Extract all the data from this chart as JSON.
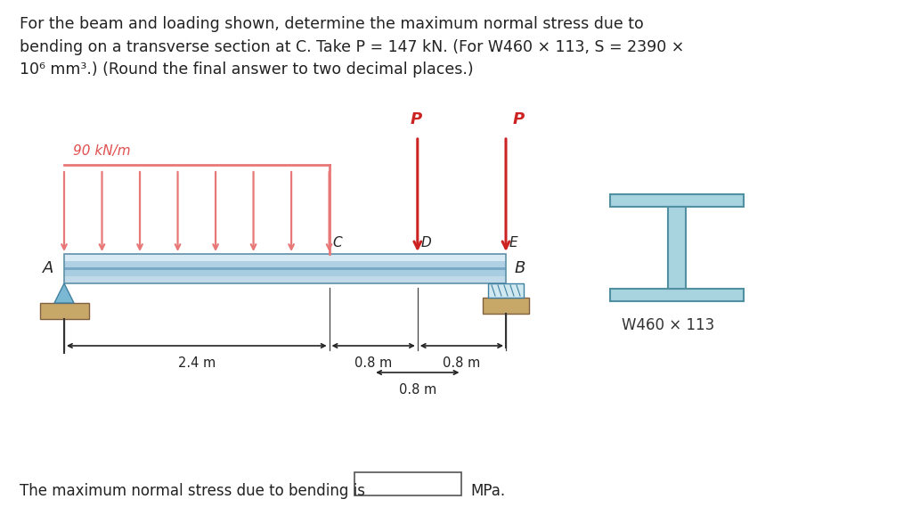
{
  "title_text": "For the beam and loading shown, determine the maximum normal stress due to\nbending on a transverse section at C. Take P = 147 kN. (For W460 × 113, S = 2390 ×\n10⁶ mm³.) (Round the final answer to two decimal places.)",
  "bottom_text": "The maximum normal stress due to bending is",
  "bottom_unit": "MPa.",
  "bg_color": "#ffffff",
  "text_color": "#222222",
  "dist_load_color": "#e87878",
  "point_load_color": "#cc2222",
  "load_label_color": "#e05050",
  "ibeam_color_light": "#a8d4e0",
  "ibeam_color_dark": "#6aabbb",
  "ibeam_stroke": "#5090a0",
  "support_A_color": "#7ab8d4",
  "support_base_color": "#c8a868",
  "dim_color": "#222222",
  "beam_top_color": "#c8e0ec",
  "beam_mid_color": "#88b8d0",
  "beam_bot_color": "#b0cedd",
  "roller_color": "#8ab8c8"
}
